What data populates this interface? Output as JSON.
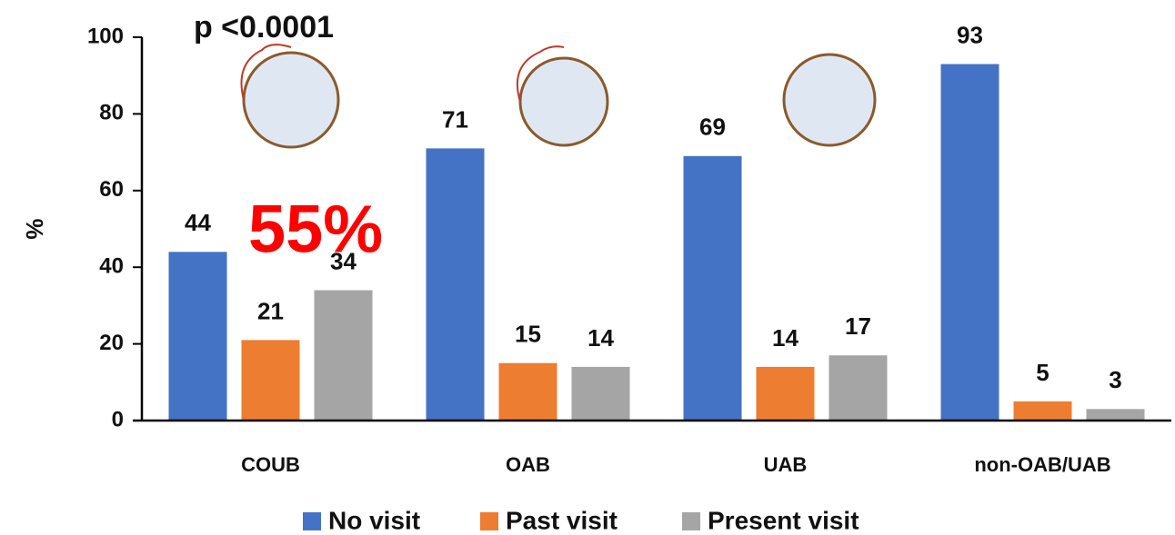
{
  "chart_data": {
    "type": "bar",
    "y_label": "%",
    "annotations": [
      "p <0.0001",
      "55%"
    ],
    "categories": [
      "COUB",
      "OAB",
      "UAB",
      "non-OAB/UAB"
    ],
    "series": [
      {
        "name": "No visit",
        "color": "#4472c4",
        "values": [
          44,
          71,
          69,
          93
        ]
      },
      {
        "name": "Past visit",
        "color": "#ed7d31",
        "values": [
          21,
          15,
          14,
          5
        ]
      },
      {
        "name": "Present visit",
        "color": "#a5a5a5",
        "values": [
          34,
          14,
          17,
          3
        ]
      }
    ],
    "ylim": [
      0,
      100
    ],
    "yticks": [
      0,
      20,
      40,
      60,
      80,
      100
    ],
    "grid": false,
    "legend": "bottom"
  }
}
